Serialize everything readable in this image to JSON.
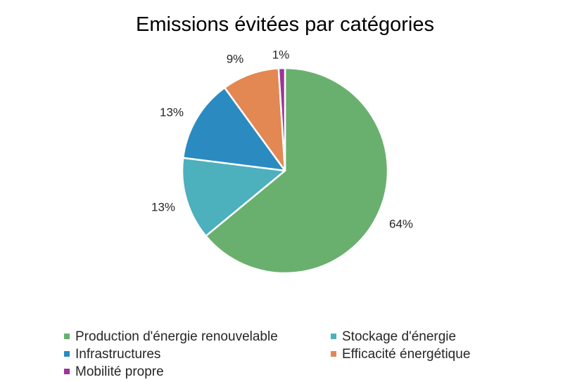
{
  "chart_data": {
    "type": "pie",
    "title": "Emissions évitées par catégories",
    "legend_position": "bottom",
    "slices": [
      {
        "label": "Production d'énergie renouvelable",
        "value": 64,
        "display": "64%",
        "color": "#69b06e"
      },
      {
        "label": "Stockage d'énergie",
        "value": 13,
        "display": "13%",
        "color": "#4cb0bd"
      },
      {
        "label": "Infrastructures",
        "value": 13,
        "display": "13%",
        "color": "#2b8bc1"
      },
      {
        "label": "Efficacité énergétique",
        "value": 9,
        "display": "9%",
        "color": "#e38753"
      },
      {
        "label": "Mobilité propre",
        "value": 1,
        "display": "1%",
        "color": "#9c3597"
      }
    ]
  }
}
